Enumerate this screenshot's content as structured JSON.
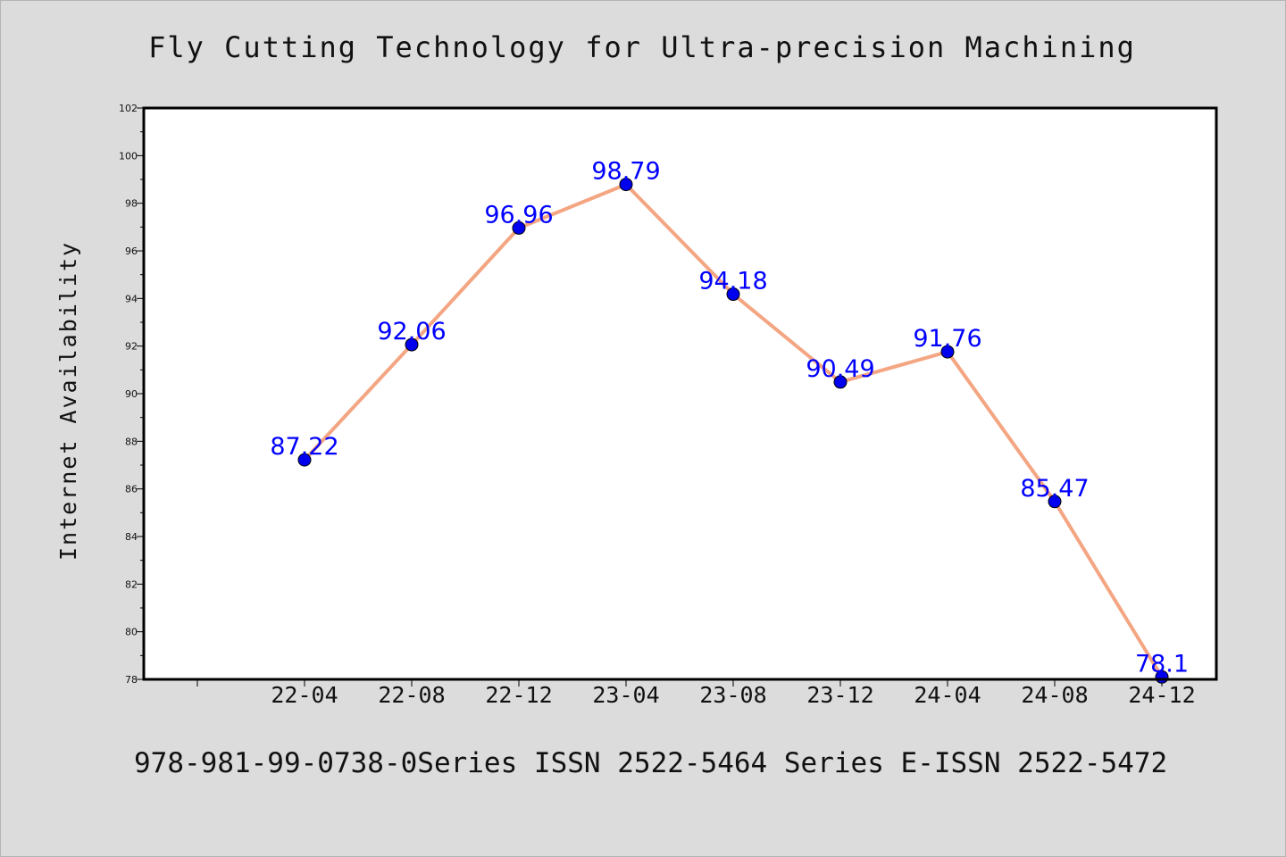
{
  "chart_data": {
    "type": "line",
    "title": "Fly Cutting Technology for Ultra-precision Machining",
    "footer": "978-981-99-0738-0Series ISSN 2522-5464 Series E-ISSN 2522-5472",
    "xlabel": "",
    "ylabel": "Internet Availability",
    "ylim": [
      78,
      102
    ],
    "yticks": [
      78,
      80,
      82,
      84,
      86,
      88,
      90,
      92,
      94,
      96,
      98,
      100,
      102
    ],
    "categories": [
      "22-04",
      "22-08",
      "22-12",
      "23-04",
      "23-08",
      "23-12",
      "24-04",
      "24-08",
      "24-12"
    ],
    "series": [
      {
        "values": [
          87.22,
          92.06,
          96.96,
          98.79,
          94.18,
          90.49,
          91.76,
          85.47,
          78.1
        ],
        "labels": [
          "87.22",
          "92.06",
          "96.96",
          "98.79",
          "94.18",
          "90.49",
          "91.76",
          "85.47",
          "78.1"
        ],
        "line_color": "#f4a582",
        "marker_color": "#0000ee"
      }
    ],
    "label_color": "#0000ff",
    "grid": false,
    "legend": "none",
    "background": "#dcdcdc",
    "plot_background": "#ffffff"
  }
}
